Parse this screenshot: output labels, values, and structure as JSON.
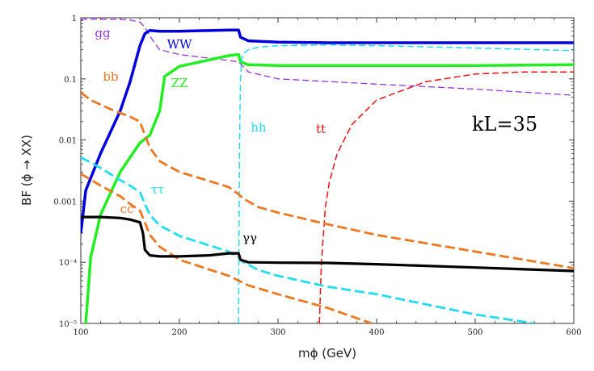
{
  "chart_data": {
    "type": "line",
    "title": "",
    "annotation": "kL=35",
    "xlabel": "mϕ (GeV)",
    "ylabel": "BF (ϕ → XX)",
    "xlim": [
      100,
      600
    ],
    "ylim": [
      1e-05,
      1
    ],
    "yscale": "log",
    "grid": false,
    "x_ticks": [
      100,
      200,
      300,
      400,
      500,
      600
    ],
    "x_tick_labels": [
      "100",
      "200",
      "300",
      "400",
      "500",
      "600"
    ],
    "y_ticks": [
      1e-05,
      0.0001,
      0.001,
      0.01,
      0.1,
      1
    ],
    "y_tick_labels": [
      "10⁻⁵",
      "10⁻⁴",
      "0.001",
      "0.01",
      "0.1",
      "1"
    ],
    "series": [
      {
        "name": "gg",
        "color": "#9933dd",
        "style": "dashed",
        "x": [
          100,
          120,
          140,
          150,
          160,
          165,
          170,
          180,
          200,
          250,
          260,
          270,
          300,
          400,
          500,
          600
        ],
        "y": [
          0.95,
          0.95,
          0.94,
          0.92,
          0.85,
          0.7,
          0.5,
          0.3,
          0.25,
          0.2,
          0.19,
          0.13,
          0.1,
          0.082,
          0.068,
          0.054
        ]
      },
      {
        "name": "WW",
        "color": "#0000dd",
        "style": "solid",
        "x": [
          100,
          105,
          120,
          140,
          150,
          160,
          165,
          170,
          180,
          200,
          250,
          260,
          262,
          270,
          300,
          350,
          400,
          500,
          600
        ],
        "y": [
          0.0003,
          0.0015,
          0.006,
          0.03,
          0.09,
          0.35,
          0.55,
          0.62,
          0.6,
          0.6,
          0.63,
          0.63,
          0.48,
          0.42,
          0.4,
          0.39,
          0.39,
          0.39,
          0.39
        ]
      },
      {
        "name": "ZZ",
        "color": "#22ee22",
        "style": "solid",
        "x": [
          105,
          110,
          120,
          140,
          160,
          170,
          180,
          185,
          200,
          250,
          260,
          262,
          270,
          300,
          400,
          500,
          600
        ],
        "y": [
          1e-05,
          0.00012,
          0.0006,
          0.003,
          0.009,
          0.012,
          0.03,
          0.11,
          0.16,
          0.24,
          0.25,
          0.19,
          0.17,
          0.165,
          0.165,
          0.165,
          0.17
        ]
      },
      {
        "name": "hh",
        "color": "#22ddee",
        "style": "dashed",
        "x": [
          260,
          261,
          262,
          263,
          265,
          270,
          280,
          300,
          350,
          400,
          500,
          600
        ],
        "y": [
          1e-05,
          0.01,
          0.1,
          0.2,
          0.26,
          0.3,
          0.33,
          0.35,
          0.36,
          0.35,
          0.32,
          0.29
        ]
      },
      {
        "name": "tt",
        "color": "#ee1111",
        "style": "dashed",
        "x": [
          342,
          344,
          348,
          352,
          360,
          375,
          400,
          450,
          500,
          550,
          600
        ],
        "y": [
          1e-05,
          0.0001,
          0.0008,
          0.002,
          0.006,
          0.018,
          0.045,
          0.09,
          0.12,
          0.13,
          0.13
        ]
      },
      {
        "name": "bb",
        "color": "#ee7722",
        "style": "dashed",
        "x": [
          100,
          110,
          130,
          150,
          160,
          165,
          170,
          180,
          200,
          250,
          260,
          265,
          280,
          300,
          350,
          400,
          500,
          600
        ],
        "y": [
          0.06,
          0.045,
          0.032,
          0.024,
          0.02,
          0.012,
          0.0075,
          0.0045,
          0.003,
          0.0017,
          0.0013,
          0.0011,
          0.0008,
          0.00065,
          0.00042,
          0.00028,
          0.00015,
          8e-05
        ]
      },
      {
        "name": "cc",
        "color": "#ee7722",
        "style": "dashed",
        "x": [
          100,
          120,
          140,
          150,
          160,
          165,
          170,
          180,
          200,
          250,
          260,
          270,
          300,
          350,
          395
        ],
        "y": [
          0.0028,
          0.0018,
          0.0012,
          0.0009,
          0.0007,
          0.00045,
          0.00028,
          0.00018,
          0.00011,
          6e-05,
          5e-05,
          4.2e-05,
          3e-05,
          1.8e-05,
          1e-05
        ]
      },
      {
        "name": "ττ",
        "color": "#22ddee",
        "style": "dashed",
        "x": [
          100,
          120,
          140,
          150,
          160,
          165,
          170,
          180,
          200,
          250,
          260,
          265,
          280,
          300,
          350,
          400,
          500,
          560
        ],
        "y": [
          0.0052,
          0.0035,
          0.0022,
          0.0018,
          0.0014,
          0.0009,
          0.0006,
          0.0004,
          0.00027,
          0.00015,
          0.00012,
          0.0001,
          7.5e-05,
          6e-05,
          4e-05,
          3e-05,
          1.4e-05,
          1e-05
        ]
      },
      {
        "name": "γγ",
        "color": "#000000",
        "style": "solid",
        "x": [
          100,
          120,
          140,
          150,
          160,
          163,
          165,
          170,
          180,
          200,
          230,
          250,
          260,
          262,
          270,
          300,
          350,
          400,
          500,
          600
        ],
        "y": [
          0.00055,
          0.00055,
          0.00053,
          0.0005,
          0.00045,
          0.0003,
          0.00016,
          0.00013,
          0.000125,
          0.000125,
          0.00013,
          0.00014,
          0.00014,
          0.00011,
          0.0001,
          9.85e-05,
          9.75e-05,
          9.3e-05,
          8.2e-05,
          7.2e-05
        ]
      }
    ]
  }
}
